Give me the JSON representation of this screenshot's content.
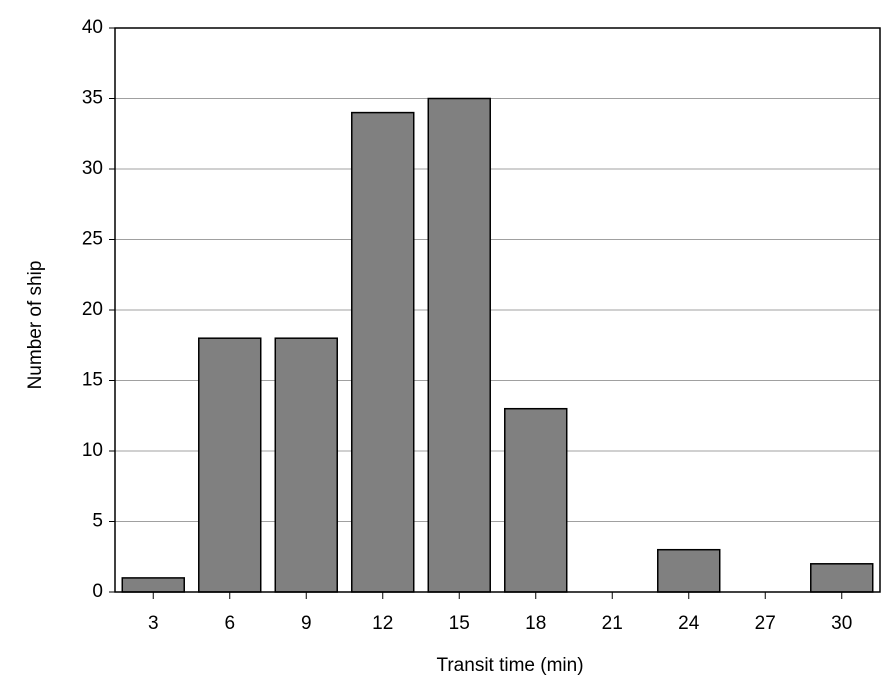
{
  "chart_data": {
    "type": "bar",
    "xlabel": "Transit time (min)",
    "ylabel": "Number of ship",
    "categories": [
      "3",
      "6",
      "9",
      "12",
      "15",
      "18",
      "21",
      "24",
      "27",
      "30"
    ],
    "values": [
      1,
      18,
      18,
      34,
      35,
      13,
      0,
      3,
      0,
      2
    ],
    "color": "#808080",
    "ylim": [
      0,
      40
    ],
    "yticks": [
      0,
      5,
      10,
      15,
      20,
      25,
      30,
      35,
      40
    ],
    "grid": true
  }
}
